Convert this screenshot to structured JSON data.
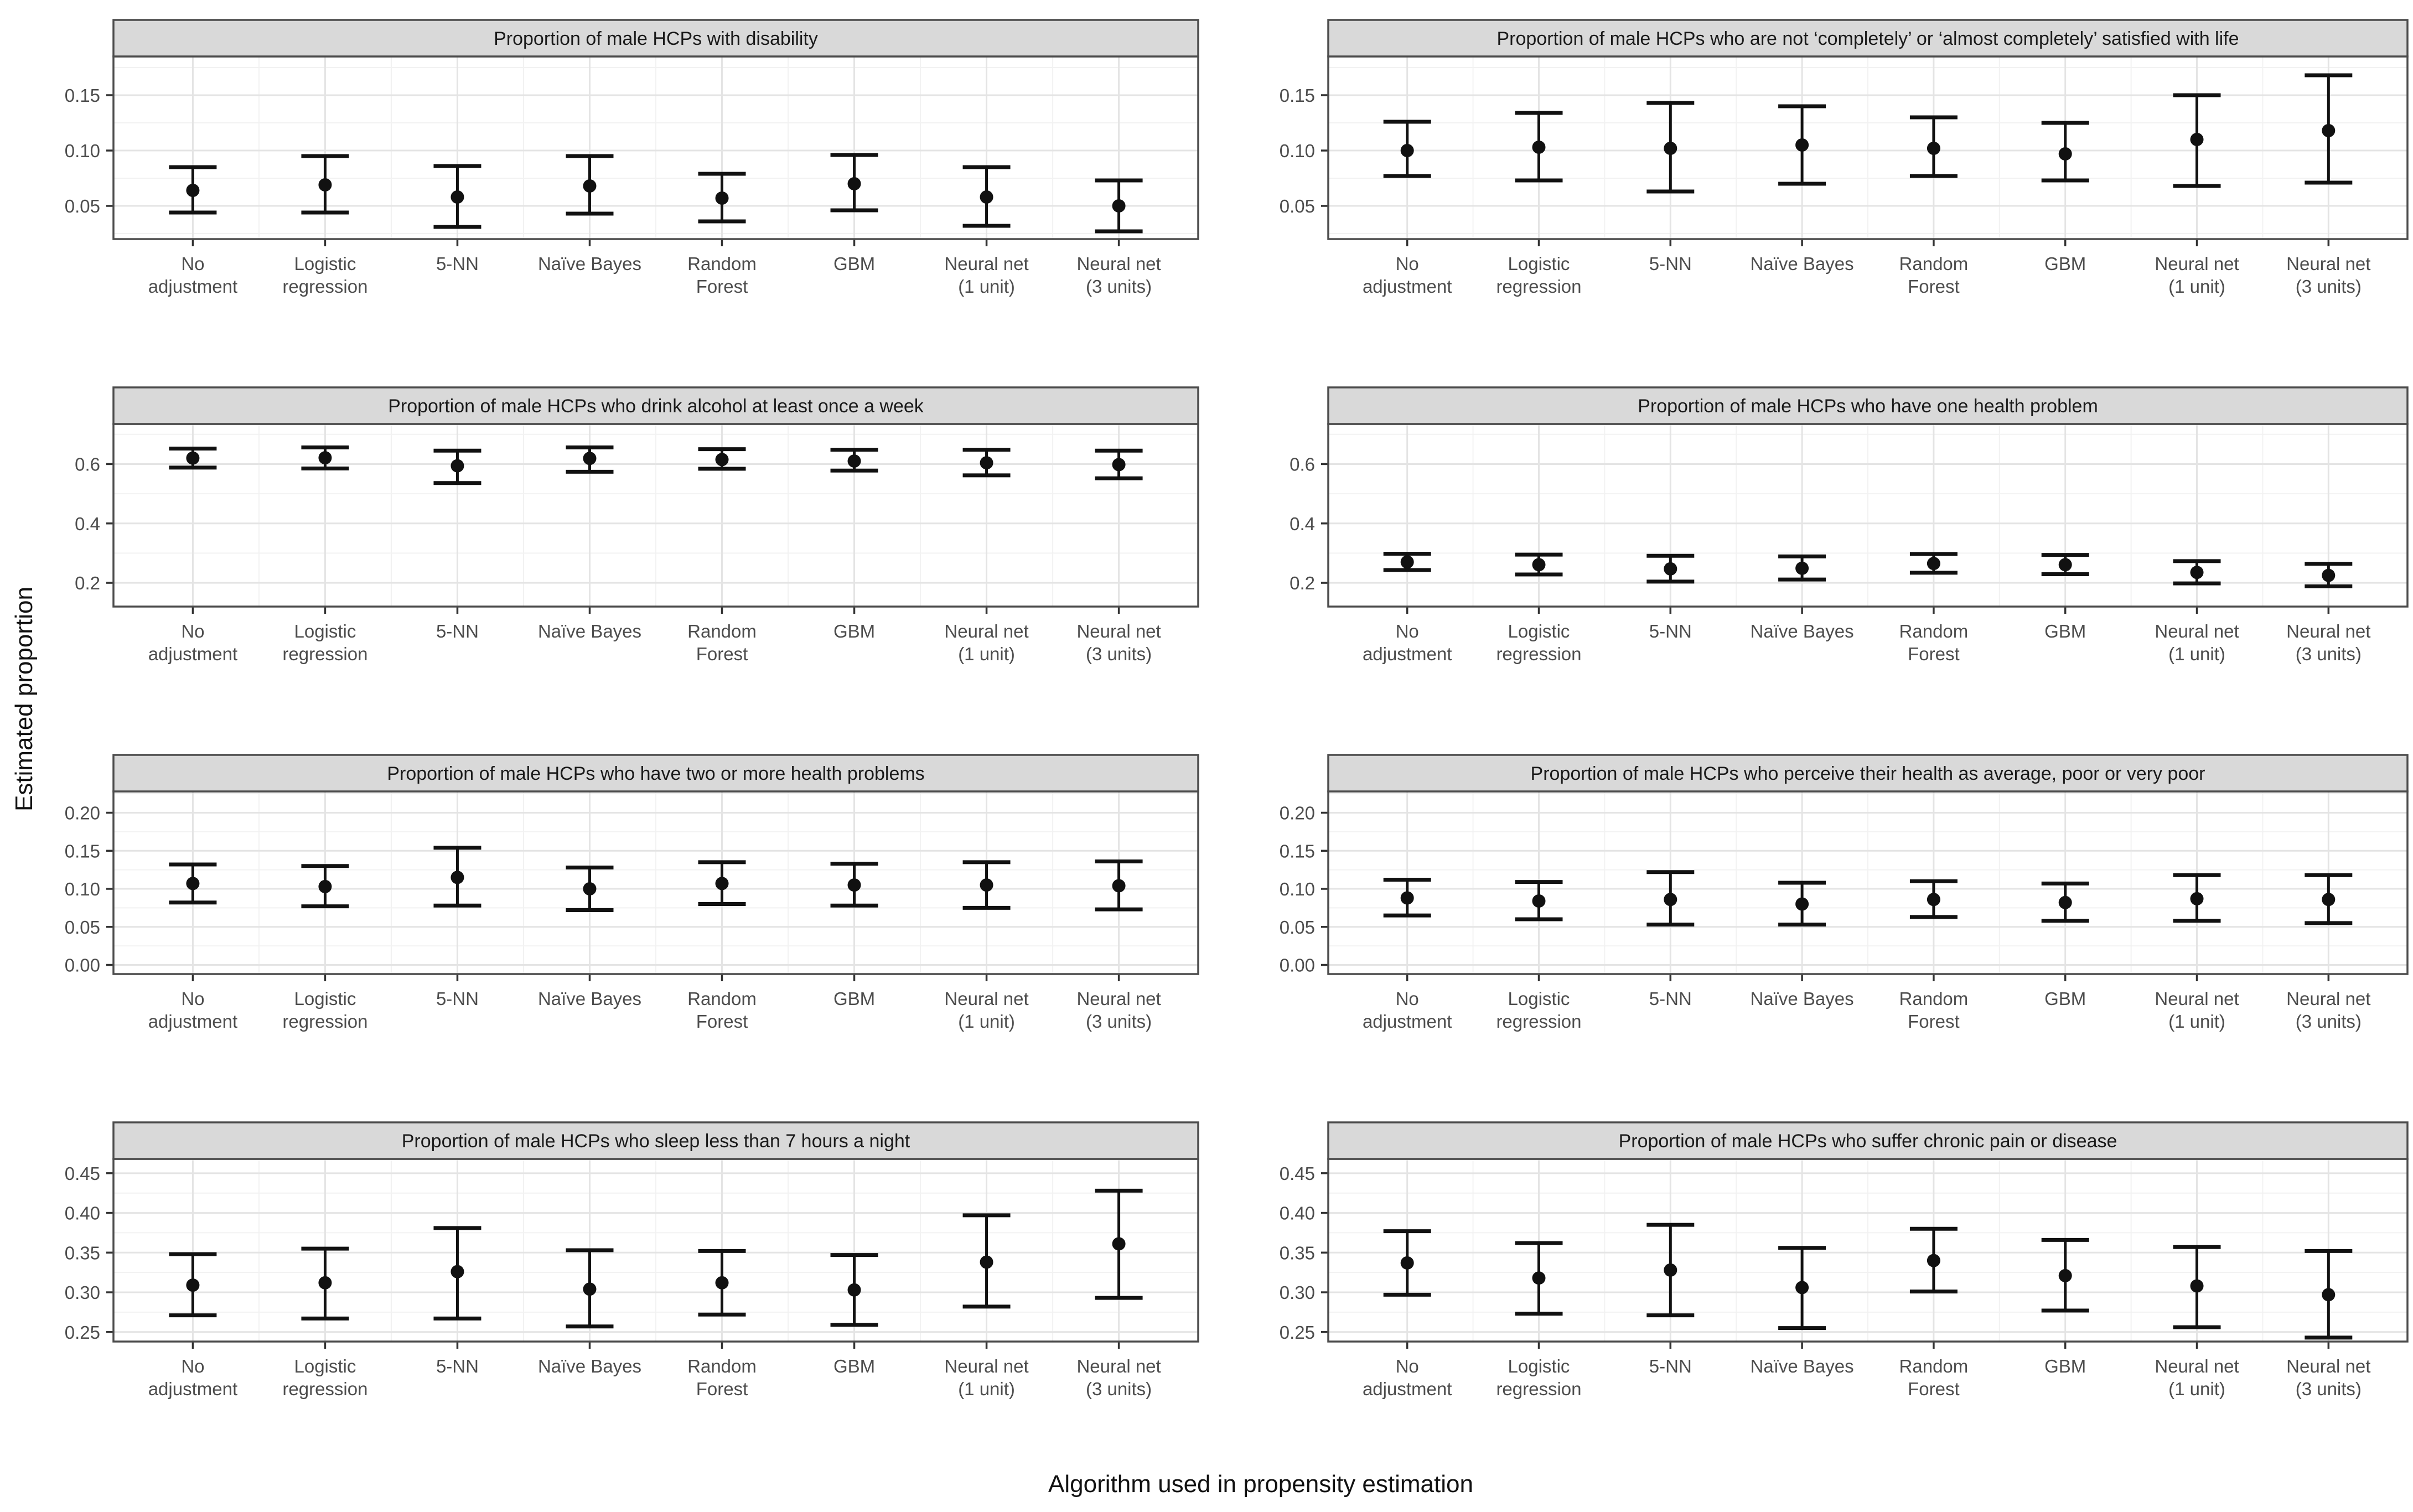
{
  "figure": {
    "xlabel": "Algorithm used in propensity estimation",
    "ylabel": "Estimated proportion"
  },
  "colors": {
    "strip_fill": "#d9d9d9",
    "strip_border": "#4d4d4d",
    "panel_border": "#4d4d4d",
    "grid_major": "#e4e4e4",
    "grid_minor": "#f2f2f2",
    "tick_mark": "#333333",
    "tick_label": "#4d4d4d",
    "point": "#111111",
    "error_bar": "#111111"
  },
  "categories": [
    [
      "No",
      "adjustment"
    ],
    [
      "Logistic",
      "regression"
    ],
    [
      "5-NN"
    ],
    [
      "Naïve Bayes"
    ],
    [
      "Random",
      "Forest"
    ],
    [
      "GBM"
    ],
    [
      "Neural net",
      "(1 unit)"
    ],
    [
      "Neural net",
      "(3 units)"
    ]
  ],
  "chart_data": [
    {
      "type": "errorbar",
      "title": "Proportion of male HCPs with disability",
      "row": 0,
      "col": 0,
      "ylim": [
        0.02,
        0.185
      ],
      "yticks": [
        0.05,
        0.1,
        0.15
      ],
      "ytick_labels": [
        "0.05",
        "0.10",
        "0.15"
      ],
      "yminor": [
        0.025,
        0.075,
        0.125,
        0.175
      ],
      "est": [
        0.064,
        0.069,
        0.058,
        0.068,
        0.057,
        0.07,
        0.058,
        0.05
      ],
      "lower": [
        0.044,
        0.044,
        0.031,
        0.043,
        0.036,
        0.046,
        0.032,
        0.027
      ],
      "upper": [
        0.085,
        0.095,
        0.086,
        0.095,
        0.079,
        0.096,
        0.085,
        0.073
      ]
    },
    {
      "type": "errorbar",
      "title": "Proportion of male HCPs who are not ‘completely’ or ‘almost completely’ satisfied with life",
      "row": 0,
      "col": 1,
      "ylim": [
        0.02,
        0.185
      ],
      "yticks": [
        0.05,
        0.1,
        0.15
      ],
      "ytick_labels": [
        "0.05",
        "0.10",
        "0.15"
      ],
      "yminor": [
        0.025,
        0.075,
        0.125,
        0.175
      ],
      "est": [
        0.1,
        0.103,
        0.102,
        0.105,
        0.102,
        0.097,
        0.11,
        0.118
      ],
      "lower": [
        0.077,
        0.073,
        0.063,
        0.07,
        0.077,
        0.073,
        0.068,
        0.071
      ],
      "upper": [
        0.126,
        0.134,
        0.143,
        0.14,
        0.13,
        0.125,
        0.15,
        0.168
      ]
    },
    {
      "type": "errorbar",
      "title": "Proportion of male HCPs who drink alcohol at least once a week",
      "row": 1,
      "col": 0,
      "ylim": [
        0.12,
        0.735
      ],
      "yticks": [
        0.2,
        0.4,
        0.6
      ],
      "ytick_labels": [
        "0.2",
        "0.4",
        "0.6"
      ],
      "yminor": [
        0.3,
        0.5,
        0.7
      ],
      "est": [
        0.62,
        0.621,
        0.594,
        0.619,
        0.615,
        0.61,
        0.604,
        0.598
      ],
      "lower": [
        0.588,
        0.585,
        0.536,
        0.574,
        0.584,
        0.578,
        0.562,
        0.552
      ],
      "upper": [
        0.652,
        0.656,
        0.645,
        0.656,
        0.65,
        0.648,
        0.648,
        0.645
      ]
    },
    {
      "type": "errorbar",
      "title": "Proportion of male HCPs who have one health problem",
      "row": 1,
      "col": 1,
      "ylim": [
        0.12,
        0.735
      ],
      "yticks": [
        0.2,
        0.4,
        0.6
      ],
      "ytick_labels": [
        "0.2",
        "0.4",
        "0.6"
      ],
      "yminor": [
        0.3,
        0.5,
        0.7
      ],
      "est": [
        0.27,
        0.261,
        0.247,
        0.249,
        0.265,
        0.261,
        0.235,
        0.225
      ],
      "lower": [
        0.243,
        0.228,
        0.204,
        0.211,
        0.234,
        0.229,
        0.198,
        0.188
      ],
      "upper": [
        0.298,
        0.295,
        0.291,
        0.289,
        0.297,
        0.294,
        0.273,
        0.264
      ]
    },
    {
      "type": "errorbar",
      "title": "Proportion of male HCPs who have two or more health problems",
      "row": 2,
      "col": 0,
      "ylim": [
        -0.012,
        0.228
      ],
      "yticks": [
        0.0,
        0.05,
        0.1,
        0.15,
        0.2
      ],
      "ytick_labels": [
        "0.00",
        "0.05",
        "0.10",
        "0.15",
        "0.20"
      ],
      "yminor": [
        0.025,
        0.075,
        0.125,
        0.175,
        0.225
      ],
      "est": [
        0.107,
        0.103,
        0.115,
        0.1,
        0.107,
        0.105,
        0.105,
        0.104
      ],
      "lower": [
        0.082,
        0.077,
        0.078,
        0.072,
        0.08,
        0.078,
        0.075,
        0.073
      ],
      "upper": [
        0.132,
        0.13,
        0.154,
        0.128,
        0.135,
        0.133,
        0.135,
        0.136
      ]
    },
    {
      "type": "errorbar",
      "title": "Proportion of male HCPs who perceive their health as average, poor or very poor",
      "row": 2,
      "col": 1,
      "ylim": [
        -0.012,
        0.228
      ],
      "yticks": [
        0.0,
        0.05,
        0.1,
        0.15,
        0.2
      ],
      "ytick_labels": [
        "0.00",
        "0.05",
        "0.10",
        "0.15",
        "0.20"
      ],
      "yminor": [
        0.025,
        0.075,
        0.125,
        0.175,
        0.225
      ],
      "est": [
        0.088,
        0.084,
        0.086,
        0.08,
        0.086,
        0.082,
        0.087,
        0.086
      ],
      "lower": [
        0.065,
        0.06,
        0.053,
        0.053,
        0.063,
        0.058,
        0.058,
        0.055
      ],
      "upper": [
        0.112,
        0.109,
        0.122,
        0.108,
        0.11,
        0.107,
        0.118,
        0.118
      ]
    },
    {
      "type": "errorbar",
      "title": "Proportion of male HCPs who sleep less than 7 hours a night",
      "row": 3,
      "col": 0,
      "ylim": [
        0.238,
        0.468
      ],
      "yticks": [
        0.25,
        0.3,
        0.35,
        0.4,
        0.45
      ],
      "ytick_labels": [
        "0.25",
        "0.30",
        "0.35",
        "0.40",
        "0.45"
      ],
      "yminor": [
        0.275,
        0.325,
        0.375,
        0.425
      ],
      "est": [
        0.309,
        0.312,
        0.326,
        0.304,
        0.312,
        0.303,
        0.338,
        0.361
      ],
      "lower": [
        0.271,
        0.267,
        0.267,
        0.257,
        0.272,
        0.259,
        0.282,
        0.293
      ],
      "upper": [
        0.348,
        0.355,
        0.381,
        0.353,
        0.352,
        0.347,
        0.397,
        0.428
      ]
    },
    {
      "type": "errorbar",
      "title": "Proportion of male HCPs who suffer chronic pain or disease",
      "row": 3,
      "col": 1,
      "ylim": [
        0.238,
        0.468
      ],
      "yticks": [
        0.25,
        0.3,
        0.35,
        0.4,
        0.45
      ],
      "ytick_labels": [
        "0.25",
        "0.30",
        "0.35",
        "0.40",
        "0.45"
      ],
      "yminor": [
        0.275,
        0.325,
        0.375,
        0.425
      ],
      "est": [
        0.337,
        0.318,
        0.328,
        0.306,
        0.34,
        0.321,
        0.308,
        0.297
      ],
      "lower": [
        0.297,
        0.273,
        0.271,
        0.255,
        0.301,
        0.277,
        0.256,
        0.243
      ],
      "upper": [
        0.377,
        0.362,
        0.385,
        0.356,
        0.38,
        0.366,
        0.357,
        0.352
      ]
    }
  ]
}
